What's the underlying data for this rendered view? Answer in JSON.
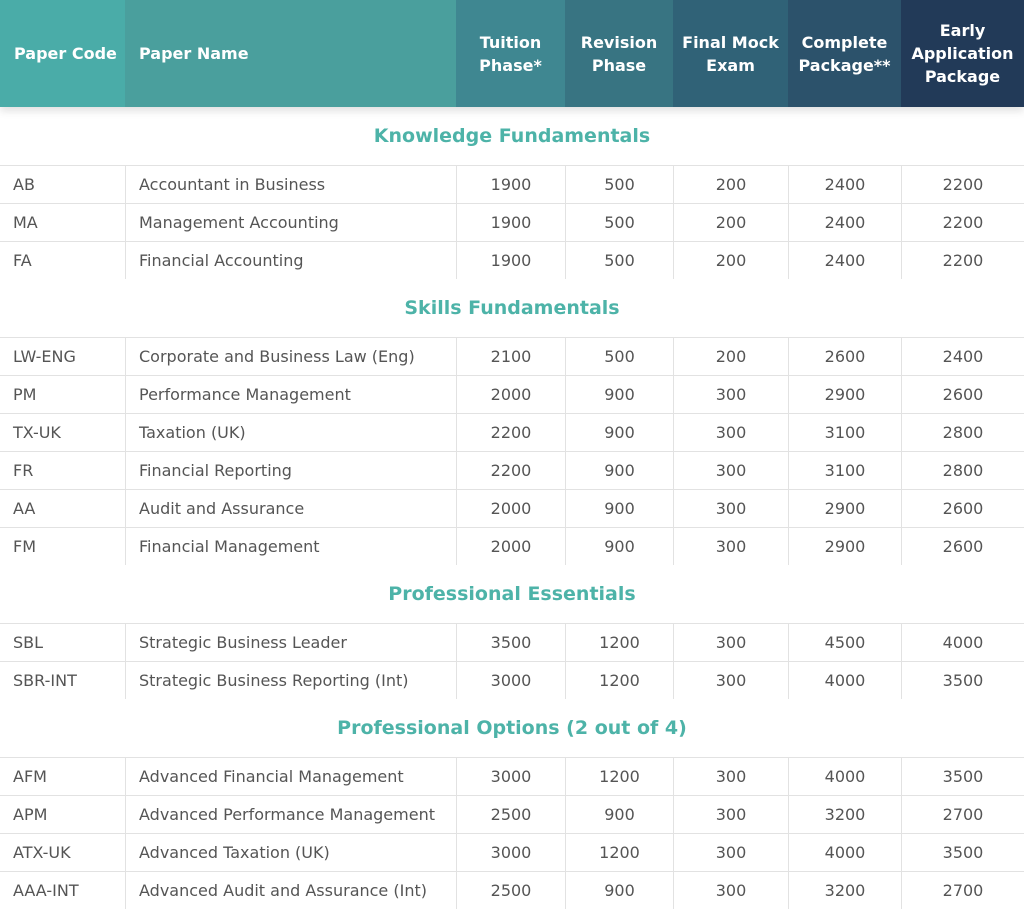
{
  "header": {
    "columns": [
      "Paper Code",
      "Paper Name",
      "Tuition Phase*",
      "Revision Phase",
      "Final Mock Exam",
      "Complete Package**",
      "Early Application Package"
    ]
  },
  "sections": [
    {
      "title": "Knowledge Fundamentals",
      "rows": [
        [
          "AB",
          "Accountant in Business",
          1900,
          500,
          200,
          2400,
          2200
        ],
        [
          "MA",
          "Management Accounting",
          1900,
          500,
          200,
          2400,
          2200
        ],
        [
          "FA",
          "Financial Accounting",
          1900,
          500,
          200,
          2400,
          2200
        ]
      ]
    },
    {
      "title": "Skills Fundamentals",
      "rows": [
        [
          "LW-ENG",
          "Corporate and Business Law (Eng)",
          2100,
          500,
          200,
          2600,
          2400
        ],
        [
          "PM",
          "Performance Management",
          2000,
          900,
          300,
          2900,
          2600
        ],
        [
          "TX-UK",
          "Taxation (UK)",
          2200,
          900,
          300,
          3100,
          2800
        ],
        [
          "FR",
          "Financial Reporting",
          2200,
          900,
          300,
          3100,
          2800
        ],
        [
          "AA",
          "Audit and Assurance",
          2000,
          900,
          300,
          2900,
          2600
        ],
        [
          "FM",
          "Financial Management",
          2000,
          900,
          300,
          2900,
          2600
        ]
      ]
    },
    {
      "title": "Professional Essentials",
      "rows": [
        [
          "SBL",
          "Strategic Business Leader",
          3500,
          1200,
          300,
          4500,
          4000
        ],
        [
          "SBR-INT",
          "Strategic Business Reporting (Int)",
          3000,
          1200,
          300,
          4000,
          3500
        ]
      ]
    },
    {
      "title": "Professional Options (2 out of 4)",
      "rows": [
        [
          "AFM",
          "Advanced Financial Management",
          3000,
          1200,
          300,
          4000,
          3500
        ],
        [
          "APM",
          "Advanced Performance Management",
          2500,
          900,
          300,
          3200,
          2700
        ],
        [
          "ATX-UK",
          "Advanced Taxation (UK)",
          3000,
          1200,
          300,
          4000,
          3500
        ],
        [
          "AAA-INT",
          "Advanced Audit and Assurance (Int)",
          2500,
          900,
          300,
          3200,
          2700
        ]
      ]
    }
  ]
}
